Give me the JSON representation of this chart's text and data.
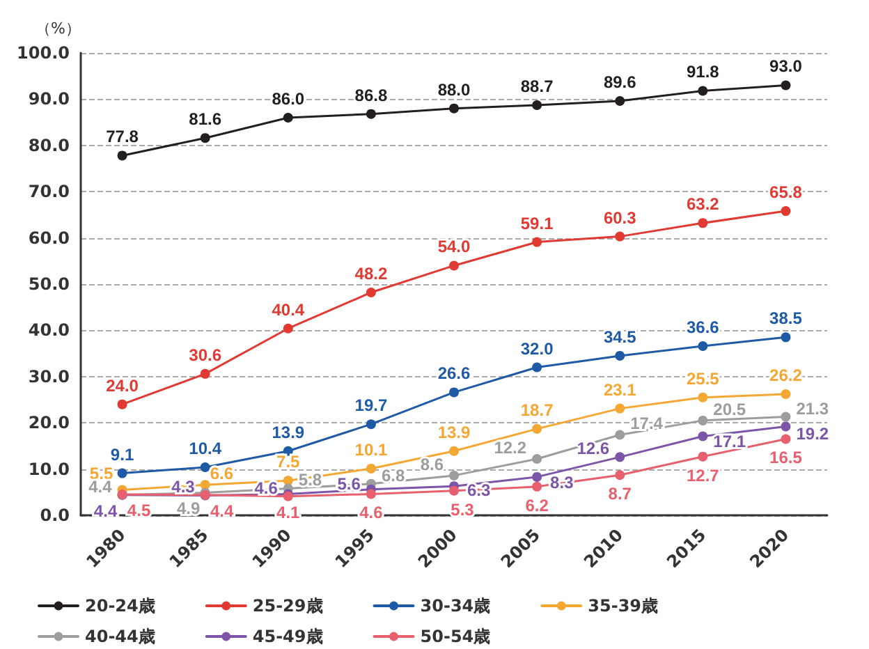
{
  "chart_data": {
    "type": "line",
    "ylabel": "（%）",
    "categories": [
      "1980",
      "1985",
      "1990",
      "1995",
      "2000",
      "2005",
      "2010",
      "2015",
      "2020"
    ],
    "series": [
      {
        "name": "20-24歳",
        "color": "#231f20",
        "values": [
          77.8,
          81.6,
          86.0,
          86.8,
          88.0,
          88.7,
          89.6,
          91.8,
          93.0
        ],
        "value_labels": [
          "77.8",
          "81.6",
          "86.0",
          "86.8",
          "88.0",
          "88.7",
          "89.6",
          "91.8",
          "93.0"
        ]
      },
      {
        "name": "25-29歳",
        "color": "#e03a33",
        "values": [
          24.0,
          30.6,
          40.4,
          48.2,
          54.0,
          59.1,
          60.3,
          63.2,
          65.8
        ],
        "value_labels": [
          "24.0",
          "30.6",
          "40.4",
          "48.2",
          "54.0",
          "59.1",
          "60.3",
          "63.2",
          "65.8"
        ]
      },
      {
        "name": "30-34歳",
        "color": "#1f5aa6",
        "values": [
          9.1,
          10.4,
          13.9,
          19.7,
          26.6,
          32.0,
          34.5,
          36.6,
          38.5
        ],
        "value_labels": [
          "9.1",
          "10.4",
          "13.9",
          "19.7",
          "26.6",
          "32.0",
          "34.5",
          "36.6",
          "38.5"
        ]
      },
      {
        "name": "35-39歳",
        "color": "#f5a733",
        "values": [
          5.5,
          6.6,
          7.5,
          10.1,
          13.9,
          18.7,
          23.1,
          25.5,
          26.2
        ],
        "value_labels": [
          "5.5",
          "6.6",
          "7.5",
          "10.1",
          "13.9",
          "18.7",
          "23.1",
          "25.5",
          "26.2"
        ]
      },
      {
        "name": "40-44歳",
        "color": "#9d9d9d",
        "values": [
          4.4,
          4.9,
          5.8,
          6.8,
          8.6,
          12.2,
          17.4,
          20.5,
          21.3
        ],
        "value_labels": [
          "4.4",
          "4.9",
          "5.8",
          "6.8",
          "8.6",
          "12.2",
          "17.4",
          "20.5",
          "21.3"
        ]
      },
      {
        "name": "45-49歳",
        "color": "#7d55a8",
        "values": [
          4.4,
          4.3,
          4.6,
          5.6,
          6.3,
          8.3,
          12.6,
          17.1,
          19.2
        ],
        "value_labels": [
          "4.4",
          "4.3",
          "4.6",
          "5.6",
          "6.3",
          "8.3",
          "12.6",
          "17.1",
          "19.2"
        ]
      },
      {
        "name": "50-54歳",
        "color": "#e8606e",
        "values": [
          4.5,
          4.4,
          4.1,
          4.6,
          5.3,
          6.2,
          8.7,
          12.7,
          16.5
        ],
        "value_labels": [
          "4.5",
          "4.4",
          "4.1",
          "4.6",
          "5.3",
          "6.2",
          "8.7",
          "12.7",
          "16.5"
        ]
      }
    ],
    "ylim": [
      0,
      100
    ],
    "yticks": [
      {
        "value": 0,
        "label": "0.0"
      },
      {
        "value": 10,
        "label": "10.0"
      },
      {
        "value": 20,
        "label": "20.0"
      },
      {
        "value": 30,
        "label": "30.0"
      },
      {
        "value": 40,
        "label": "40.0"
      },
      {
        "value": 50,
        "label": "50.0"
      },
      {
        "value": 60,
        "label": "60.0"
      },
      {
        "value": 70,
        "label": "70.0"
      },
      {
        "value": 80,
        "label": "80.0"
      },
      {
        "value": 90,
        "label": "90.0"
      },
      {
        "value": 100,
        "label": "100.0"
      }
    ],
    "grid": "y",
    "legend": "bottom",
    "marker": "circle",
    "line_style": "solid"
  }
}
